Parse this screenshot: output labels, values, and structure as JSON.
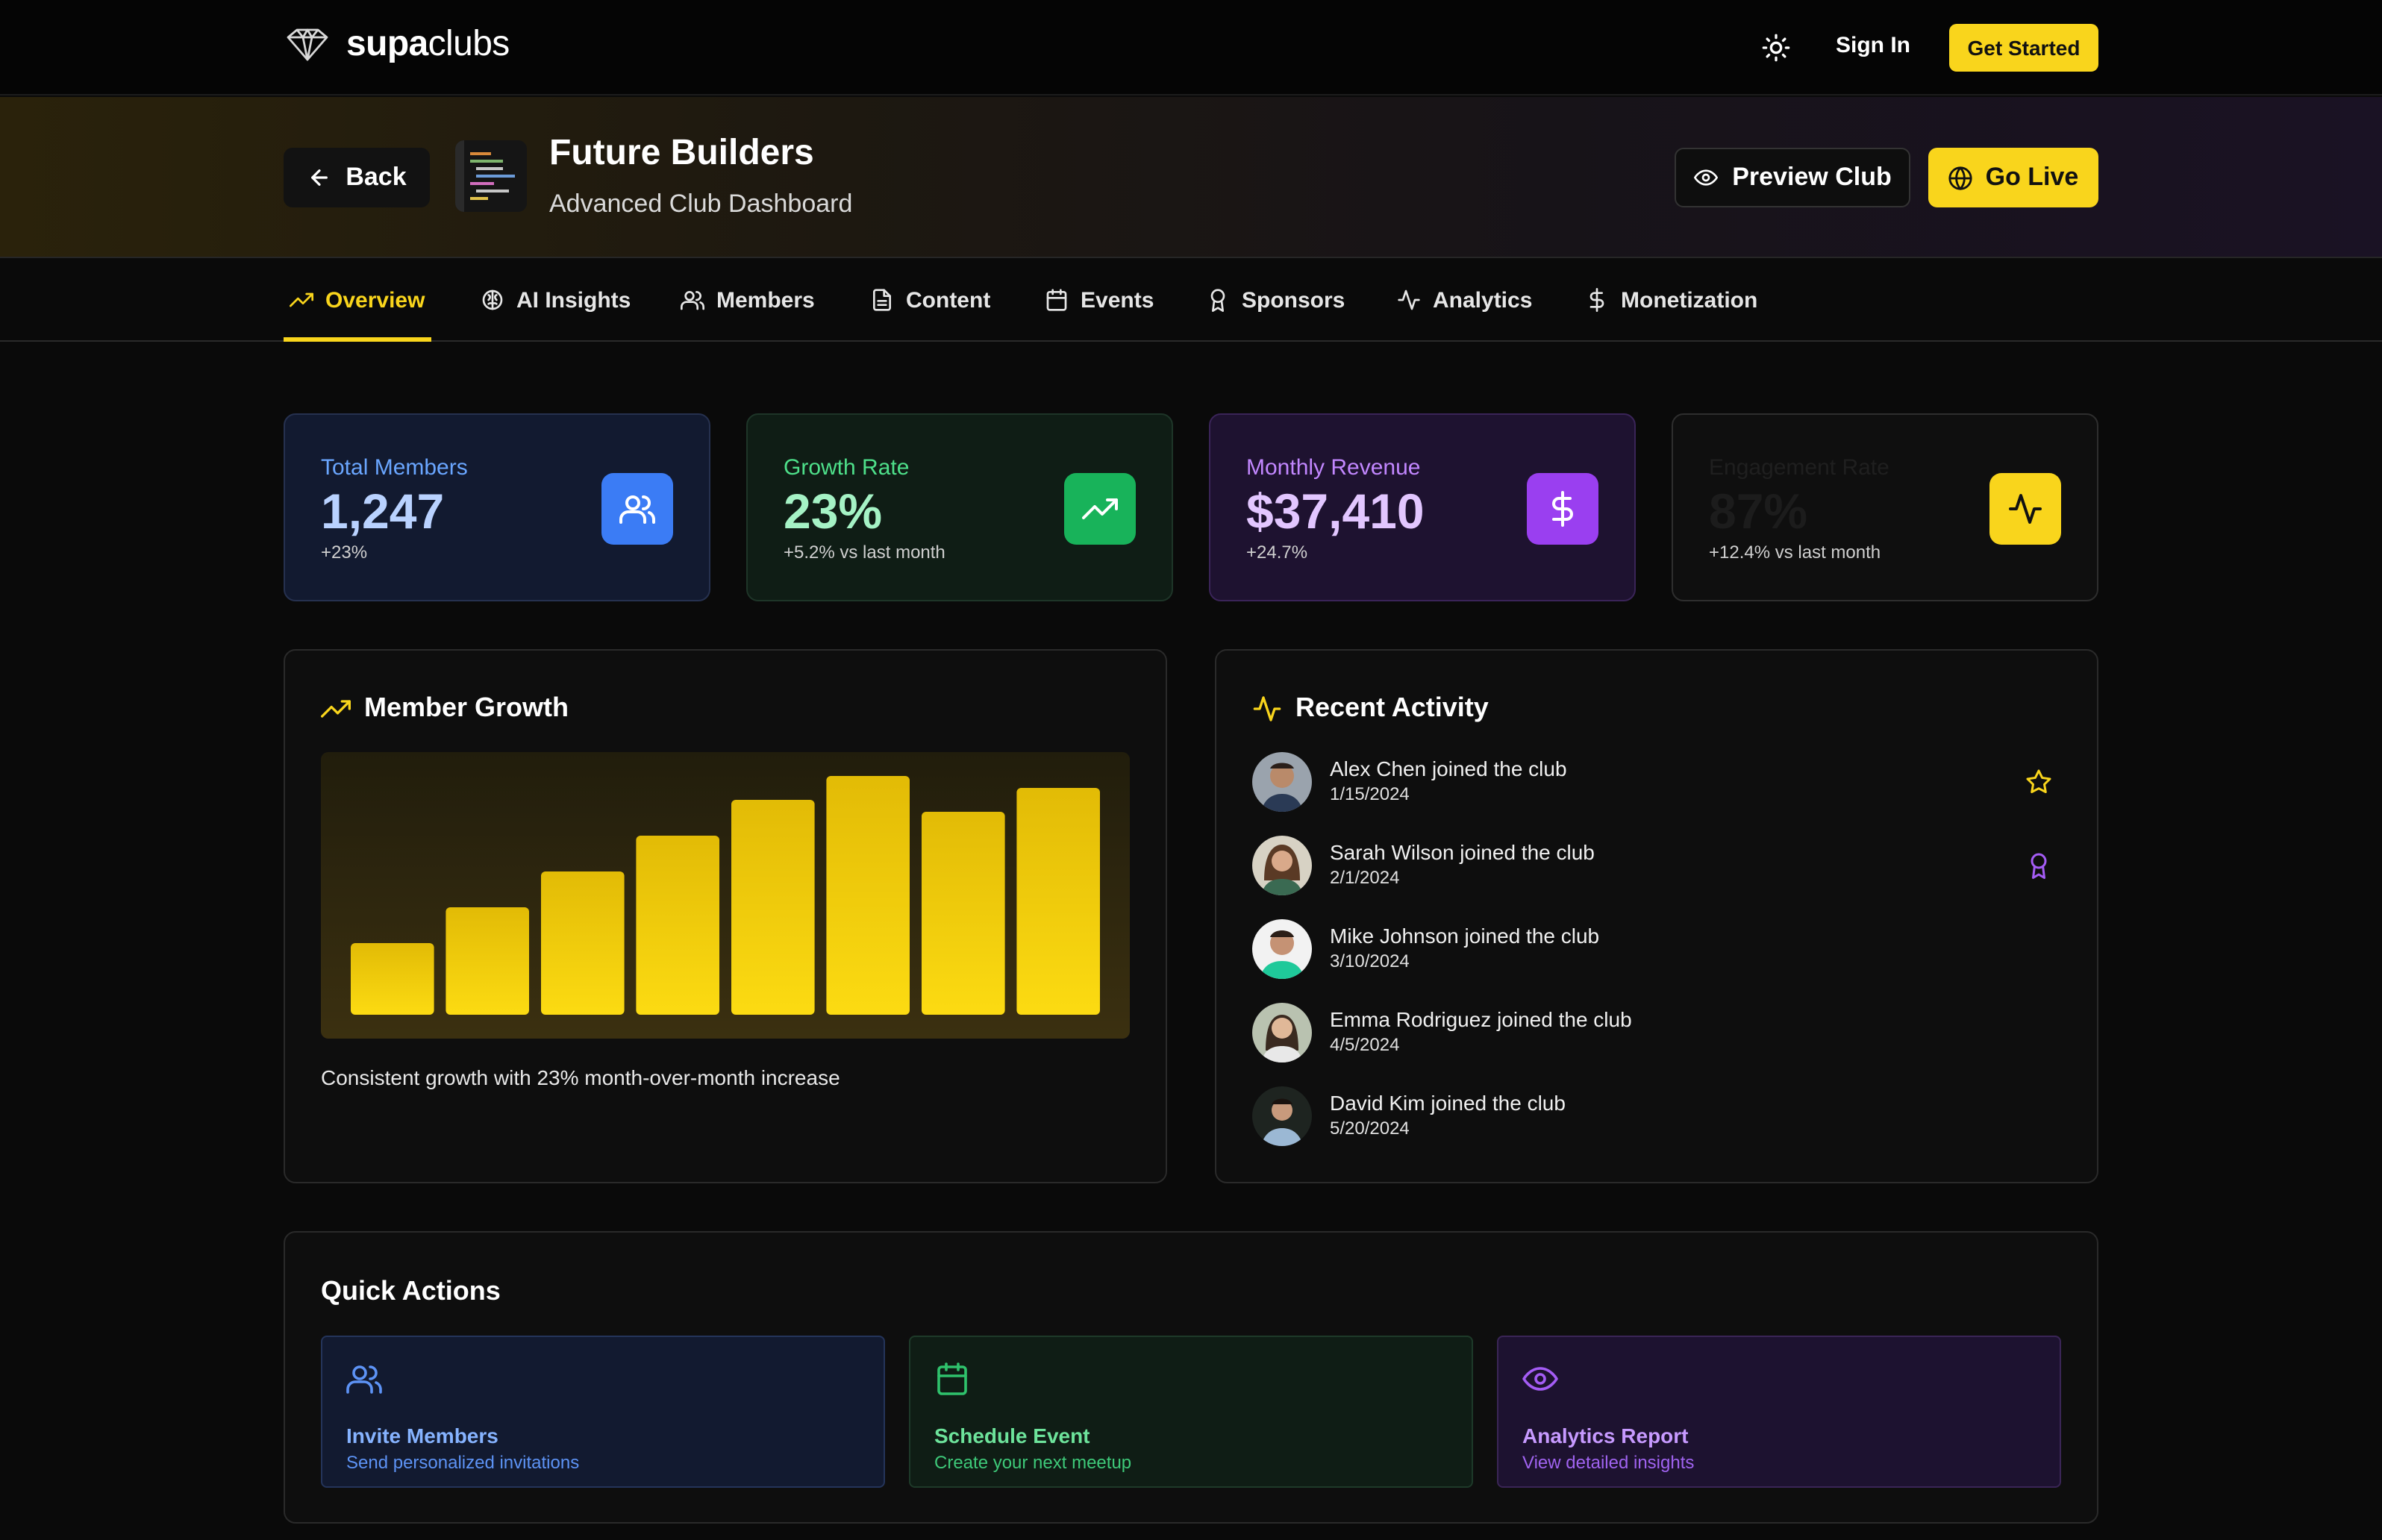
{
  "brand": {
    "name_bold": "supa",
    "name_light": "clubs",
    "logo_icon": "diamond-icon"
  },
  "topbar": {
    "theme_icon": "sun-icon",
    "sign_in": "Sign In",
    "get_started": "Get Started"
  },
  "club": {
    "back_label": "Back",
    "title": "Future Builders",
    "subtitle": "Advanced Club Dashboard",
    "preview_label": "Preview Club",
    "golive_label": "Go Live"
  },
  "tabs": [
    {
      "label": "Overview",
      "icon": "trending-up-icon",
      "active": true
    },
    {
      "label": "AI Insights",
      "icon": "brain-icon"
    },
    {
      "label": "Members",
      "icon": "users-icon"
    },
    {
      "label": "Content",
      "icon": "file-icon"
    },
    {
      "label": "Events",
      "icon": "calendar-icon"
    },
    {
      "label": "Sponsors",
      "icon": "award-icon"
    },
    {
      "label": "Analytics",
      "icon": "activity-icon"
    },
    {
      "label": "Monetization",
      "icon": "dollar-icon"
    }
  ],
  "stats": [
    {
      "label": "Total Members",
      "value": "1,247",
      "delta": "+23%",
      "icon": "users-icon"
    },
    {
      "label": "Growth Rate",
      "value": "23%",
      "delta": "+5.2% vs last month",
      "icon": "trending-up-icon"
    },
    {
      "label": "Monthly Revenue",
      "value": "$37,410",
      "delta": "+24.7%",
      "icon": "dollar-icon"
    },
    {
      "label": "Engagement Rate",
      "value": "87%",
      "delta": "+12.4% vs last month",
      "icon": "activity-icon"
    }
  ],
  "growth": {
    "title": "Member Growth",
    "note": "Consistent growth with 23% month-over-month increase"
  },
  "chart_data": {
    "type": "bar",
    "categories": [
      "",
      "",
      "",
      "",
      "",
      "",
      "",
      ""
    ],
    "values": [
      30,
      45,
      60,
      75,
      90,
      100,
      85,
      95
    ],
    "ylim": [
      0,
      100
    ],
    "grid": false,
    "color": "#f9d51c"
  },
  "activity": {
    "title": "Recent Activity",
    "items": [
      {
        "name": "Alex Chen joined the club",
        "date": "1/15/2024",
        "badge": "star-icon"
      },
      {
        "name": "Sarah Wilson joined the club",
        "date": "2/1/2024",
        "badge": "award-icon"
      },
      {
        "name": "Mike Johnson joined the club",
        "date": "3/10/2024"
      },
      {
        "name": "Emma Rodriguez joined the club",
        "date": "4/5/2024"
      },
      {
        "name": "David Kim joined the club",
        "date": "5/20/2024"
      }
    ]
  },
  "quick_actions": {
    "title": "Quick Actions",
    "items": [
      {
        "title": "Invite Members",
        "subtitle": "Send personalized invitations",
        "icon": "users-icon"
      },
      {
        "title": "Schedule Event",
        "subtitle": "Create your next meetup",
        "icon": "calendar-icon"
      },
      {
        "title": "Analytics Report",
        "subtitle": "View detailed insights",
        "icon": "eye-icon"
      }
    ]
  },
  "colors": {
    "accent": "#f9d51c",
    "blue": "#3b7cf5",
    "green": "#18b35a",
    "purple": "#9a3ff0"
  }
}
